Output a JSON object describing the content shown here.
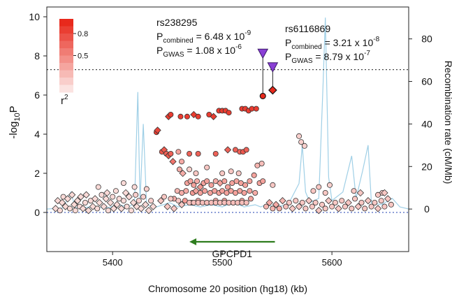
{
  "chart_data": {
    "type": "scatter",
    "xlabel": "Chromosome 20 position (hg18) (kb)",
    "ylabel_left_base": "-log",
    "ylabel_left_sub": "10",
    "ylabel_left_tail": "P",
    "ylabel_right": "Recombination rate (cM/Mb)",
    "xlim": [
      5340,
      5670
    ],
    "ylim_left": [
      -2,
      10.5
    ],
    "ylim_right": [
      -20,
      95
    ],
    "xticks": [
      5400,
      5500,
      5600
    ],
    "yticks_left": [
      0,
      2,
      4,
      6,
      8,
      10
    ],
    "yticks_right": [
      0,
      20,
      40,
      60,
      80
    ],
    "significance_line": 7.3,
    "gene": {
      "name": "GPCPD1",
      "start": 5548,
      "end": 5470,
      "y": -1.5
    },
    "legend": {
      "title_base": "r",
      "title_sup": "2",
      "labels": [
        "0.8",
        "0.5"
      ],
      "color_high": "#e8291c",
      "color_low": "#fbe3e1"
    },
    "annotations": [
      {
        "snp": "rs238295",
        "p_combined_prefix": "P",
        "p_combined_sub": "combined",
        "p_combined_value": " = 6.48 x 10",
        "p_combined_exp": "-9",
        "p_gwas_prefix": "P",
        "p_gwas_sub": "GWAS",
        "p_gwas_value": " = 1.08 x 10",
        "p_gwas_exp": "-6"
      },
      {
        "snp": "rs6116869",
        "p_combined_prefix": "P",
        "p_combined_sub": "combined",
        "p_combined_value": " = 3.21 x 10",
        "p_combined_exp": "-8",
        "p_gwas_prefix": "P",
        "p_gwas_sub": "GWAS",
        "p_gwas_value": " = 8.79 x 10",
        "p_gwas_exp": "-7"
      }
    ],
    "triangles": [
      {
        "x": 5537,
        "y": 8.1,
        "snp": "rs238295"
      },
      {
        "x": 5546,
        "y": 7.4,
        "snp": "rs6116869"
      }
    ],
    "highlighted": [
      {
        "x": 5537,
        "y": 5.95,
        "shape": "circle",
        "r2": 1.0
      },
      {
        "x": 5546,
        "y": 6.25,
        "shape": "diamond",
        "r2": 1.0
      }
    ],
    "recombination": [
      [
        5340,
        0
      ],
      [
        5355,
        0.5
      ],
      [
        5362,
        8
      ],
      [
        5366,
        0.5
      ],
      [
        5380,
        1
      ],
      [
        5395,
        0.5
      ],
      [
        5405,
        2
      ],
      [
        5415,
        1
      ],
      [
        5420,
        3
      ],
      [
        5423,
        55
      ],
      [
        5425,
        3
      ],
      [
        5428,
        40
      ],
      [
        5431,
        2
      ],
      [
        5440,
        1
      ],
      [
        5452,
        3
      ],
      [
        5460,
        1
      ],
      [
        5470,
        2
      ],
      [
        5480,
        1
      ],
      [
        5490,
        2
      ],
      [
        5500,
        1
      ],
      [
        5510,
        3
      ],
      [
        5520,
        1
      ],
      [
        5530,
        2
      ],
      [
        5535,
        1
      ],
      [
        5540,
        2
      ],
      [
        5548,
        1
      ],
      [
        5560,
        2
      ],
      [
        5570,
        12
      ],
      [
        5573,
        30
      ],
      [
        5576,
        8
      ],
      [
        5580,
        3
      ],
      [
        5588,
        5
      ],
      [
        5592,
        60
      ],
      [
        5594,
        90
      ],
      [
        5597,
        15
      ],
      [
        5600,
        4
      ],
      [
        5610,
        8
      ],
      [
        5618,
        25
      ],
      [
        5622,
        5
      ],
      [
        5628,
        18
      ],
      [
        5633,
        30
      ],
      [
        5636,
        3
      ],
      [
        5645,
        2
      ],
      [
        5655,
        5
      ],
      [
        5662,
        1
      ],
      [
        5670,
        0
      ]
    ],
    "points": [
      [
        5348,
        0.2,
        0.05,
        "d"
      ],
      [
        5350,
        0.6,
        0.05,
        "d"
      ],
      [
        5352,
        0.1,
        0.05,
        "c"
      ],
      [
        5354,
        0.5,
        0.05,
        "d"
      ],
      [
        5355,
        0.8,
        0.05,
        "c"
      ],
      [
        5357,
        0.3,
        0.05,
        "d"
      ],
      [
        5359,
        0.7,
        0.05,
        "d"
      ],
      [
        5361,
        0.2,
        0.05,
        "c"
      ],
      [
        5363,
        0.9,
        0.05,
        "d"
      ],
      [
        5365,
        0.4,
        0.05,
        "d"
      ],
      [
        5366,
        0.1,
        0.05,
        "c"
      ],
      [
        5368,
        0.6,
        0.05,
        "d"
      ],
      [
        5370,
        0.3,
        0.05,
        "c"
      ],
      [
        5371,
        0.8,
        0.05,
        "d"
      ],
      [
        5373,
        0.2,
        0.05,
        "d"
      ],
      [
        5375,
        0.5,
        0.05,
        "c"
      ],
      [
        5376,
        0.9,
        0.05,
        "d"
      ],
      [
        5378,
        0.1,
        0.05,
        "d"
      ],
      [
        5380,
        0.6,
        0.05,
        "c"
      ],
      [
        5382,
        0.3,
        0.05,
        "d"
      ],
      [
        5384,
        0.7,
        0.05,
        "d"
      ],
      [
        5386,
        0.2,
        0.05,
        "c"
      ],
      [
        5388,
        0.5,
        0.05,
        "d"
      ],
      [
        5390,
        0.9,
        0.05,
        "c"
      ],
      [
        5392,
        0.3,
        0.05,
        "d"
      ],
      [
        5394,
        0.7,
        0.05,
        "d"
      ],
      [
        5396,
        0.1,
        0.05,
        "c"
      ],
      [
        5398,
        0.5,
        0.05,
        "d"
      ],
      [
        5400,
        0.8,
        0.05,
        "c"
      ],
      [
        5401,
        0.2,
        0.05,
        "d"
      ],
      [
        5403,
        1.1,
        0.05,
        "c"
      ],
      [
        5404,
        0.4,
        0.05,
        "d"
      ],
      [
        5406,
        0.7,
        0.05,
        "c"
      ],
      [
        5408,
        0.2,
        0.05,
        "d"
      ],
      [
        5410,
        0.6,
        0.05,
        "c"
      ],
      [
        5412,
        1.0,
        0.05,
        "d"
      ],
      [
        5413,
        0.3,
        0.05,
        "c"
      ],
      [
        5415,
        0.8,
        0.05,
        "d"
      ],
      [
        5417,
        0.1,
        0.05,
        "c"
      ],
      [
        5419,
        0.5,
        0.05,
        "d"
      ],
      [
        5421,
        0.9,
        0.1,
        "c"
      ],
      [
        5422,
        0.3,
        0.05,
        "d"
      ],
      [
        5424,
        0.6,
        0.1,
        "c"
      ],
      [
        5426,
        0.2,
        0.05,
        "d"
      ],
      [
        5428,
        0.8,
        0.1,
        "c"
      ],
      [
        5430,
        0.4,
        0.05,
        "d"
      ],
      [
        5431,
        1.2,
        0.1,
        "c"
      ],
      [
        5433,
        0.1,
        0.05,
        "d"
      ],
      [
        5435,
        0.6,
        0.1,
        "c"
      ],
      [
        5437,
        0.3,
        0.05,
        "d"
      ],
      [
        5410,
        1.5,
        0.05,
        "c"
      ],
      [
        5420,
        1.3,
        0.05,
        "c"
      ],
      [
        5387,
        1.3,
        0.05,
        "c"
      ],
      [
        5395,
        1.0,
        0.05,
        "d"
      ],
      [
        5440,
        4.1,
        0.9,
        "c"
      ],
      [
        5441,
        4.2,
        0.85,
        "d"
      ],
      [
        5445,
        3.1,
        0.75,
        "c"
      ],
      [
        5447,
        3.2,
        0.75,
        "d"
      ],
      [
        5449,
        3.0,
        0.7,
        "c"
      ],
      [
        5451,
        2.9,
        0.75,
        "d"
      ],
      [
        5453,
        3.0,
        0.7,
        "c"
      ],
      [
        5455,
        2.6,
        0.6,
        "d"
      ],
      [
        5451,
        4.9,
        0.9,
        "d"
      ],
      [
        5453,
        5.0,
        0.9,
        "c"
      ],
      [
        5462,
        4.9,
        0.9,
        "c"
      ],
      [
        5468,
        4.9,
        0.9,
        "c"
      ],
      [
        5474,
        5.0,
        0.9,
        "d"
      ],
      [
        5478,
        4.9,
        0.9,
        "c"
      ],
      [
        5488,
        5.0,
        0.9,
        "c"
      ],
      [
        5492,
        4.9,
        0.9,
        "d"
      ],
      [
        5497,
        5.2,
        0.9,
        "c"
      ],
      [
        5500,
        5.2,
        0.9,
        "c"
      ],
      [
        5503,
        5.2,
        0.9,
        "c"
      ],
      [
        5506,
        5.1,
        0.9,
        "c"
      ],
      [
        5518,
        5.3,
        0.9,
        "c"
      ],
      [
        5521,
        5.3,
        0.9,
        "c"
      ],
      [
        5524,
        5.2,
        0.9,
        "c"
      ],
      [
        5527,
        5.3,
        0.9,
        "c"
      ],
      [
        5531,
        5.3,
        0.9,
        "c"
      ],
      [
        5460,
        3.1,
        0.35,
        "c"
      ],
      [
        5463,
        2.6,
        0.3,
        "c"
      ],
      [
        5461,
        2.2,
        0.3,
        "c"
      ],
      [
        5464,
        2.0,
        0.3,
        "d"
      ],
      [
        5470,
        3.0,
        0.7,
        "c"
      ],
      [
        5478,
        3.0,
        0.7,
        "c"
      ],
      [
        5494,
        3.0,
        0.7,
        "c"
      ],
      [
        5505,
        3.2,
        0.7,
        "d"
      ],
      [
        5512,
        3.2,
        0.7,
        "c"
      ],
      [
        5516,
        3.1,
        0.7,
        "c"
      ],
      [
        5519,
        3.1,
        0.75,
        "c"
      ],
      [
        5522,
        3.2,
        0.7,
        "c"
      ],
      [
        5470,
        2.2,
        0.1,
        "c"
      ],
      [
        5476,
        2.0,
        0.15,
        "c"
      ],
      [
        5486,
        2.3,
        0.15,
        "c"
      ],
      [
        5500,
        2.0,
        0.15,
        "c"
      ],
      [
        5508,
        2.1,
        0.15,
        "c"
      ],
      [
        5515,
        2.0,
        0.15,
        "c"
      ],
      [
        5532,
        2.4,
        0.25,
        "c"
      ],
      [
        5536,
        2.5,
        0.2,
        "c"
      ],
      [
        5468,
        1.5,
        0.35,
        "c"
      ],
      [
        5471,
        1.6,
        0.35,
        "c"
      ],
      [
        5474,
        1.4,
        0.35,
        "c"
      ],
      [
        5477,
        1.6,
        0.3,
        "c"
      ],
      [
        5480,
        1.3,
        0.4,
        "d"
      ],
      [
        5483,
        1.5,
        0.35,
        "c"
      ],
      [
        5486,
        1.6,
        0.35,
        "c"
      ],
      [
        5490,
        1.4,
        0.35,
        "c"
      ],
      [
        5494,
        1.6,
        0.3,
        "c"
      ],
      [
        5498,
        1.5,
        0.35,
        "d"
      ],
      [
        5502,
        1.6,
        0.35,
        "c"
      ],
      [
        5505,
        1.3,
        0.35,
        "c"
      ],
      [
        5509,
        1.5,
        0.35,
        "c"
      ],
      [
        5513,
        1.6,
        0.35,
        "c"
      ],
      [
        5517,
        1.5,
        0.35,
        "c"
      ],
      [
        5521,
        1.4,
        0.35,
        "c"
      ],
      [
        5525,
        1.6,
        0.35,
        "c"
      ],
      [
        5529,
        1.9,
        0.35,
        "c"
      ],
      [
        5534,
        1.5,
        0.35,
        "c"
      ],
      [
        5537,
        1.6,
        0.35,
        "c"
      ],
      [
        5459,
        1.1,
        0.25,
        "c"
      ],
      [
        5463,
        1.0,
        0.3,
        "c"
      ],
      [
        5467,
        1.1,
        0.3,
        "c"
      ],
      [
        5473,
        1.0,
        0.4,
        "c"
      ],
      [
        5476,
        1.1,
        0.35,
        "d"
      ],
      [
        5480,
        1.0,
        0.35,
        "c"
      ],
      [
        5484,
        1.1,
        0.35,
        "c"
      ],
      [
        5489,
        1.0,
        0.35,
        "c"
      ],
      [
        5493,
        1.1,
        0.35,
        "c"
      ],
      [
        5497,
        1.0,
        0.35,
        "c"
      ],
      [
        5500,
        1.1,
        0.35,
        "c"
      ],
      [
        5504,
        1.0,
        0.35,
        "c"
      ],
      [
        5508,
        1.1,
        0.35,
        "c"
      ],
      [
        5512,
        1.0,
        0.35,
        "c"
      ],
      [
        5516,
        1.1,
        0.35,
        "c"
      ],
      [
        5520,
        1.0,
        0.35,
        "c"
      ],
      [
        5525,
        1.1,
        0.35,
        "c"
      ],
      [
        5530,
        1.0,
        0.3,
        "c"
      ],
      [
        5456,
        0.7,
        0.3,
        "c"
      ],
      [
        5466,
        0.6,
        0.4,
        "c"
      ],
      [
        5472,
        0.5,
        0.35,
        "c"
      ],
      [
        5478,
        0.6,
        0.3,
        "c"
      ],
      [
        5486,
        0.5,
        0.35,
        "c"
      ],
      [
        5494,
        0.6,
        0.3,
        "c"
      ],
      [
        5502,
        0.6,
        0.35,
        "c"
      ],
      [
        5510,
        0.5,
        0.3,
        "c"
      ],
      [
        5518,
        0.6,
        0.35,
        "c"
      ],
      [
        5526,
        0.7,
        0.35,
        "c"
      ],
      [
        5470,
        0.5,
        0.2,
        "c"
      ],
      [
        5474,
        0.5,
        0.2,
        "c"
      ],
      [
        5478,
        0.5,
        0.2,
        "c"
      ],
      [
        5482,
        0.5,
        0.2,
        "c"
      ],
      [
        5486,
        0.5,
        0.2,
        "c"
      ],
      [
        5490,
        0.5,
        0.2,
        "c"
      ],
      [
        5494,
        0.5,
        0.2,
        "c"
      ],
      [
        5498,
        0.5,
        0.2,
        "c"
      ],
      [
        5502,
        0.5,
        0.2,
        "c"
      ],
      [
        5506,
        0.5,
        0.2,
        "c"
      ],
      [
        5510,
        0.5,
        0.2,
        "c"
      ],
      [
        5514,
        0.5,
        0.2,
        "c"
      ],
      [
        5518,
        0.5,
        0.2,
        "c"
      ],
      [
        5522,
        0.5,
        0.2,
        "c"
      ],
      [
        5444,
        0.6,
        0.15,
        "d"
      ],
      [
        5447,
        0.8,
        0.15,
        "c"
      ],
      [
        5450,
        0.3,
        0.15,
        "d"
      ],
      [
        5453,
        0.7,
        0.15,
        "c"
      ],
      [
        5456,
        0.2,
        0.15,
        "d"
      ],
      [
        5460,
        0.6,
        0.15,
        "c"
      ],
      [
        5463,
        0.4,
        0.15,
        "d"
      ],
      [
        5540,
        0.3,
        0.25,
        "c"
      ],
      [
        5543,
        0.5,
        0.3,
        "d"
      ],
      [
        5546,
        0.2,
        0.25,
        "c"
      ],
      [
        5549,
        0.4,
        0.3,
        "d"
      ],
      [
        5552,
        0.2,
        0.3,
        "c"
      ],
      [
        5555,
        0.6,
        0.25,
        "d"
      ],
      [
        5558,
        0.3,
        0.2,
        "c"
      ],
      [
        5561,
        0.5,
        0.15,
        "c"
      ],
      [
        5564,
        0.2,
        0.15,
        "d"
      ],
      [
        5567,
        0.6,
        0.15,
        "c"
      ],
      [
        5570,
        0.3,
        0.15,
        "d"
      ],
      [
        5573,
        0.5,
        0.15,
        "c"
      ],
      [
        5576,
        0.2,
        0.15,
        "c"
      ],
      [
        5579,
        0.6,
        0.15,
        "d"
      ],
      [
        5582,
        0.3,
        0.15,
        "c"
      ],
      [
        5585,
        0.5,
        0.15,
        "c"
      ],
      [
        5588,
        0.1,
        0.15,
        "d"
      ],
      [
        5591,
        0.4,
        0.15,
        "c"
      ],
      [
        5594,
        0.2,
        0.15,
        "c"
      ],
      [
        5597,
        0.6,
        0.15,
        "d"
      ],
      [
        5600,
        0.3,
        0.15,
        "c"
      ],
      [
        5603,
        0.5,
        0.15,
        "c"
      ],
      [
        5606,
        0.2,
        0.15,
        "d"
      ],
      [
        5609,
        0.6,
        0.15,
        "c"
      ],
      [
        5612,
        0.3,
        0.15,
        "c"
      ],
      [
        5615,
        0.5,
        0.15,
        "d"
      ],
      [
        5618,
        0.2,
        0.15,
        "c"
      ],
      [
        5621,
        0.7,
        0.15,
        "c"
      ],
      [
        5624,
        0.3,
        0.15,
        "d"
      ],
      [
        5627,
        0.5,
        0.15,
        "c"
      ],
      [
        5630,
        0.2,
        0.15,
        "c"
      ],
      [
        5633,
        0.6,
        0.15,
        "d"
      ],
      [
        5636,
        0.3,
        0.15,
        "c"
      ],
      [
        5639,
        0.5,
        0.15,
        "c"
      ],
      [
        5642,
        0.2,
        0.15,
        "d"
      ],
      [
        5645,
        0.6,
        0.15,
        "c"
      ],
      [
        5648,
        0.3,
        0.15,
        "c"
      ],
      [
        5651,
        0.7,
        0.15,
        "d"
      ],
      [
        5654,
        0.4,
        0.15,
        "c"
      ],
      [
        5546,
        1.4,
        0.15,
        "c"
      ],
      [
        5570,
        3.9,
        0.1,
        "c"
      ],
      [
        5572,
        3.6,
        0.1,
        "c"
      ],
      [
        5575,
        3.4,
        0.1,
        "c"
      ],
      [
        5583,
        1.1,
        0.15,
        "c"
      ],
      [
        5588,
        1.3,
        0.15,
        "c"
      ],
      [
        5594,
        1.0,
        0.15,
        "c"
      ],
      [
        5598,
        1.4,
        0.1,
        "c"
      ],
      [
        5620,
        1.1,
        0.15,
        "c"
      ],
      [
        5626,
        1.0,
        0.15,
        "d"
      ],
      [
        5646,
        1.0,
        0.15,
        "c"
      ],
      [
        5648,
        1.0,
        0.15,
        "d"
      ],
      [
        5642,
        0.9,
        0.15,
        "c"
      ]
    ]
  }
}
